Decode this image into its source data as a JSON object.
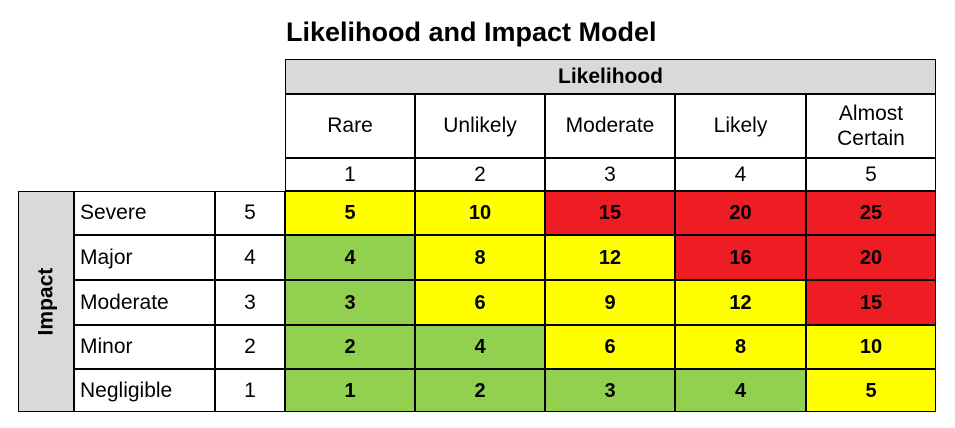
{
  "title": "Likelihood and Impact Model",
  "likelihood_header": "Likelihood",
  "impact_header": "Impact",
  "likelihood_labels": [
    "Rare",
    "Unlikely",
    "Moderate",
    "Likely",
    "Almost Certain"
  ],
  "likelihood_numbers": [
    "1",
    "2",
    "3",
    "4",
    "5"
  ],
  "impact_rows": [
    {
      "label": "Severe",
      "number": "5",
      "scores": [
        "5",
        "10",
        "15",
        "20",
        "25"
      ],
      "levels": [
        "yellow",
        "yellow",
        "red",
        "red",
        "red"
      ]
    },
    {
      "label": "Major",
      "number": "4",
      "scores": [
        "4",
        "8",
        "12",
        "16",
        "20"
      ],
      "levels": [
        "green",
        "yellow",
        "yellow",
        "red",
        "red"
      ]
    },
    {
      "label": "Moderate",
      "number": "3",
      "scores": [
        "3",
        "6",
        "9",
        "12",
        "15"
      ],
      "levels": [
        "green",
        "yellow",
        "yellow",
        "yellow",
        "red"
      ]
    },
    {
      "label": "Minor",
      "number": "2",
      "scores": [
        "2",
        "4",
        "6",
        "8",
        "10"
      ],
      "levels": [
        "green",
        "green",
        "yellow",
        "yellow",
        "yellow"
      ]
    },
    {
      "label": "Negligible",
      "number": "1",
      "scores": [
        "1",
        "2",
        "3",
        "4",
        "5"
      ],
      "levels": [
        "green",
        "green",
        "green",
        "green",
        "yellow"
      ]
    }
  ],
  "colors": {
    "green": "#92d050",
    "yellow": "#ffff00",
    "red": "#ee1c23",
    "header_gray": "#d9d9d9"
  }
}
